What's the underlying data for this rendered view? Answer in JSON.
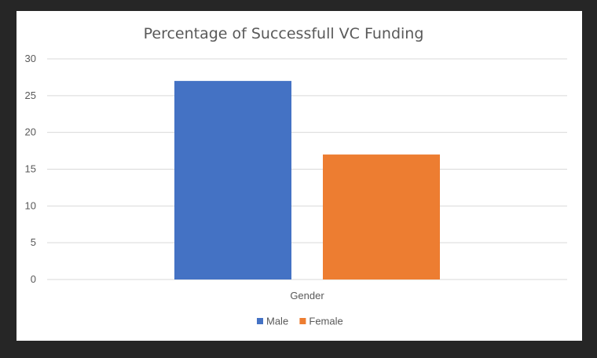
{
  "chart_data": {
    "type": "bar",
    "title": "Percentage of Successfull VC Funding",
    "categories": [
      "Gender"
    ],
    "series": [
      {
        "name": "Male",
        "values": [
          27
        ],
        "color": "#4472C4"
      },
      {
        "name": "Female",
        "values": [
          17
        ],
        "color": "#ED7D31"
      }
    ],
    "ylim": [
      0,
      30
    ],
    "yticks": [
      0,
      5,
      10,
      15,
      20,
      25,
      30
    ],
    "grid": true,
    "legend_position": "bottom"
  },
  "colors": {
    "background": "#262626",
    "plot_area": "#ffffff",
    "gridline": "#d9d9d9",
    "text": "#595959"
  }
}
